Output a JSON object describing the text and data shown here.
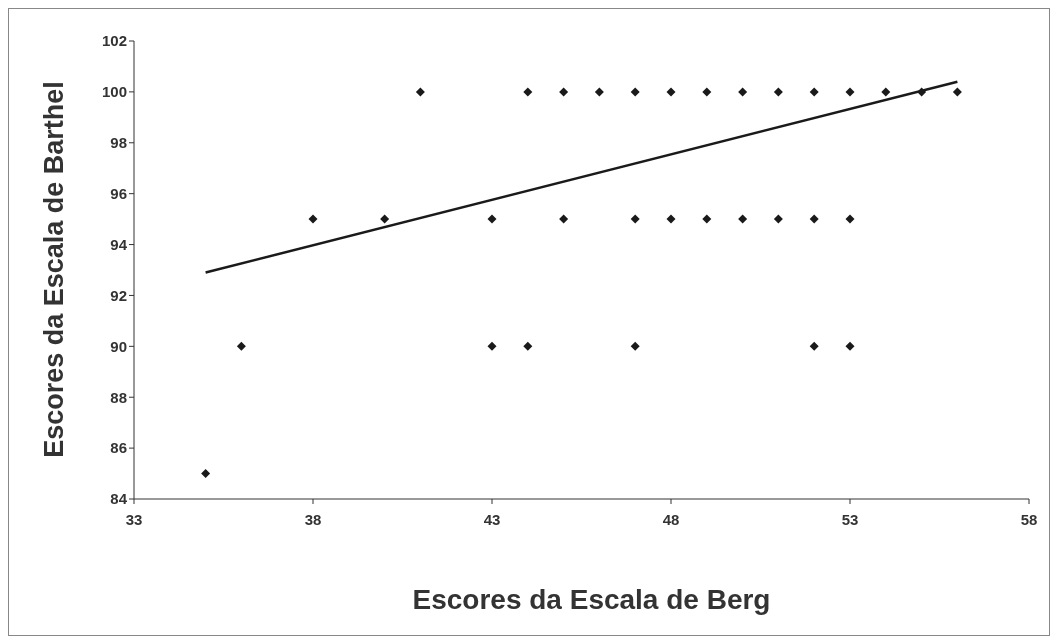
{
  "chart_data": {
    "type": "scatter",
    "xlabel": "Escores da Escala de Berg",
    "ylabel": "Escores da Escala de Barthel",
    "xlim": [
      33,
      58
    ],
    "xticks": [
      33,
      38,
      43,
      48,
      53,
      58
    ],
    "ylim": [
      84,
      102
    ],
    "yticks": [
      84,
      86,
      88,
      90,
      92,
      94,
      96,
      98,
      100,
      102
    ],
    "grid": false,
    "marker": "diamond",
    "series": [
      {
        "color": "#1a1a1a",
        "x": [
          41,
          44,
          45,
          46,
          47,
          48,
          49,
          50,
          51,
          52,
          53,
          54,
          55,
          56,
          38,
          40,
          43,
          45,
          47,
          48,
          49,
          50,
          51,
          52,
          53,
          36,
          43,
          44,
          47,
          52,
          53,
          35
        ],
        "values": [
          100,
          100,
          100,
          100,
          100,
          100,
          100,
          100,
          100,
          100,
          100,
          100,
          100,
          100,
          95,
          95,
          95,
          95,
          95,
          95,
          95,
          95,
          95,
          95,
          95,
          90,
          90,
          90,
          90,
          90,
          90,
          85
        ]
      },
      {
        "type": "line",
        "color": "#1a1a1a",
        "marker": "none",
        "x": [
          35,
          56
        ],
        "values": [
          92.9,
          100.4
        ]
      }
    ]
  }
}
